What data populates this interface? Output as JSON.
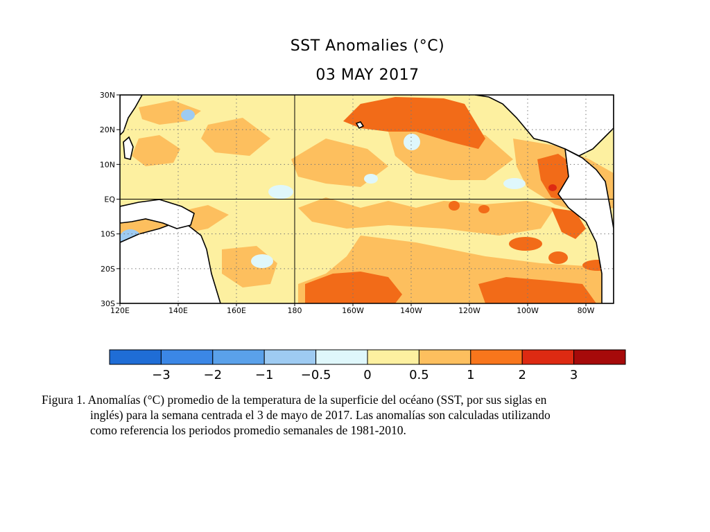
{
  "title": "SST Anomalies (°C)",
  "date": "03 MAY 2017",
  "map": {
    "lat_labels": [
      "30N",
      "20N",
      "10N",
      "EQ",
      "10S",
      "20S",
      "30S"
    ],
    "lon_labels": [
      "120E",
      "140E",
      "160E",
      "180",
      "160W",
      "140W",
      "120W",
      "100W",
      "80W"
    ],
    "colors": {
      "ocean_base": "#fdf0a0",
      "land": "#ffffff",
      "coast": "#000000",
      "warm_light": "#fdbf5e",
      "warm": "#f88a2a",
      "warm_strong": "#f26b18",
      "hot": "#dd2a12",
      "cool_pale": "#dff7fb",
      "cool": "#9ecbf2",
      "cool_mid": "#5aa1ea"
    }
  },
  "colorbar": {
    "colors": [
      "#1f6dd6",
      "#3b87e6",
      "#5aa1ea",
      "#9ecbf2",
      "#dff7fb",
      "#fdf0a0",
      "#fdbf5e",
      "#f8761c",
      "#dd2a12",
      "#a60a0a"
    ],
    "labels": [
      "−3",
      "−2",
      "−1",
      "−0.5",
      "0",
      "0.5",
      "1",
      "2",
      "3"
    ]
  },
  "caption": {
    "line1": "Figura 1. Anomalías (°C) promedio de la temperatura de la superficie del océano (SST, por sus siglas en",
    "line2": "inglés) para la semana centrada el 3 de mayo de 2017. Las anomalías son calculadas utilizando",
    "line3": "como referencia los periodos promedio semanales de 1981-2010."
  }
}
